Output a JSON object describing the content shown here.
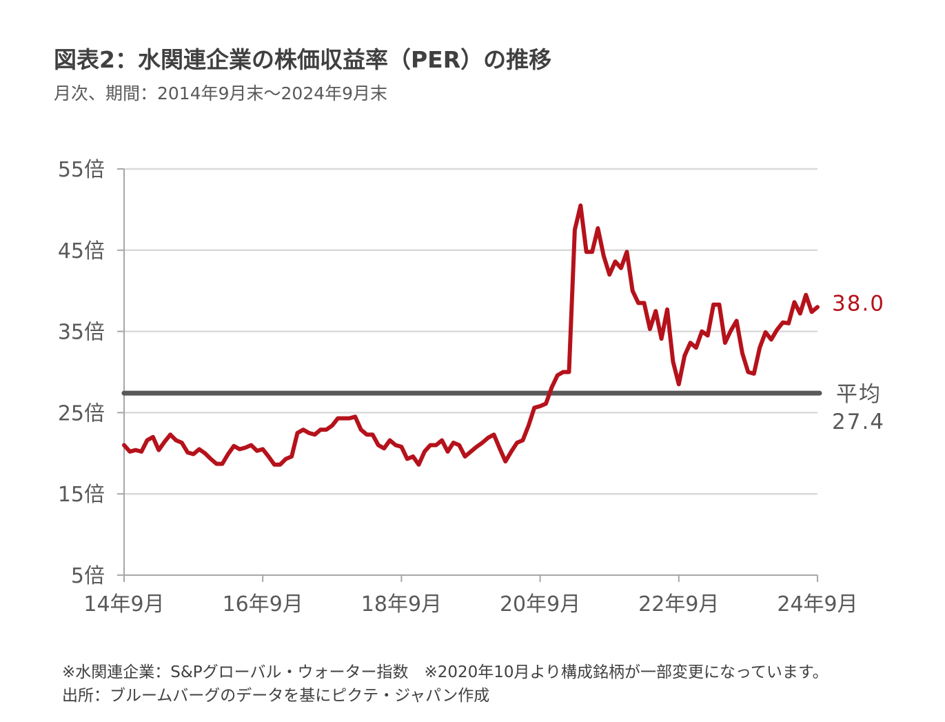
{
  "header": {
    "title": "図表2：水関連企業の株価収益率（PER）の推移",
    "subtitle": "月次、期間：2014年9月末～2024年9月末"
  },
  "footer": {
    "note1": "※水関連企業：S&Pグローバル・ウォーター指数　※2020年10月より構成銘柄が一部変更になっています。",
    "note2": "出所：ブルームバーグのデータを基にピクテ・ジャパン作成"
  },
  "chart_data": {
    "type": "line",
    "ylim": [
      5,
      55
    ],
    "yticks": [
      5,
      15,
      25,
      35,
      45,
      55
    ],
    "ytick_labels": [
      "5倍",
      "15倍",
      "25倍",
      "35倍",
      "45倍",
      "55倍"
    ],
    "xlim": [
      0,
      120
    ],
    "xticks": [
      0,
      24,
      48,
      72,
      96,
      120
    ],
    "xtick_labels": [
      "14年9月",
      "16年9月",
      "18年9月",
      "20年9月",
      "22年9月",
      "24年9月"
    ],
    "grid": true,
    "series": [
      {
        "color": "#b5121b",
        "values": [
          21.0,
          20.2,
          20.4,
          20.2,
          21.6,
          22.0,
          20.4,
          21.4,
          22.3,
          21.6,
          21.3,
          20.1,
          19.9,
          20.5,
          20.0,
          19.3,
          18.7,
          18.7,
          19.9,
          20.9,
          20.5,
          20.7,
          21.0,
          20.3,
          20.5,
          19.6,
          18.6,
          18.6,
          19.3,
          19.6,
          22.5,
          22.9,
          22.5,
          22.3,
          22.9,
          22.9,
          23.4,
          24.3,
          24.3,
          24.3,
          24.5,
          22.9,
          22.3,
          22.3,
          21.0,
          20.6,
          21.6,
          21.0,
          20.8,
          19.3,
          19.6,
          18.6,
          20.2,
          21.0,
          21.0,
          21.6,
          20.2,
          21.3,
          21.0,
          19.6,
          20.2,
          20.8,
          21.3,
          21.9,
          22.3,
          20.6,
          19.0,
          20.2,
          21.3,
          21.6,
          23.4,
          25.6,
          25.8,
          26.1,
          28.1,
          29.6,
          30.0,
          30.0,
          47.5,
          50.5,
          44.8,
          44.8,
          47.7,
          44.3,
          42.0,
          43.6,
          42.8,
          44.8,
          40.0,
          38.5,
          38.5,
          35.3,
          37.5,
          34.1,
          37.7,
          31.3,
          28.5,
          32.0,
          33.6,
          33.0,
          35.0,
          34.5,
          38.3,
          38.3,
          33.6,
          35.1,
          36.3,
          32.3,
          30.0,
          29.8,
          33.0,
          34.9,
          34.0,
          35.2,
          36.1,
          36.0,
          38.6,
          37.2,
          39.5,
          37.4,
          38.0
        ]
      }
    ],
    "average": {
      "value": 27.4,
      "label": "平均",
      "value_label": "27.4",
      "color": "#595959"
    },
    "end_label": {
      "value": 38.0,
      "text": "38.0"
    }
  }
}
